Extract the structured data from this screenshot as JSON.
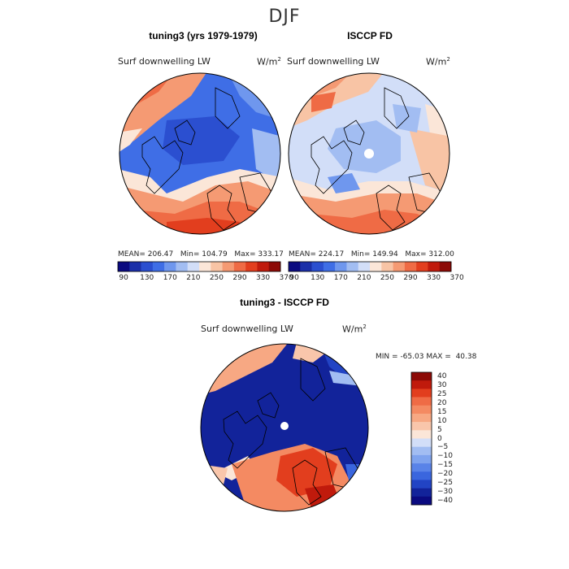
{
  "title": "DJF",
  "panels": {
    "model": {
      "title": "tuning3 (yrs 1979-1979)",
      "field_label": "Surf downwelling LW",
      "units_base": "W/m",
      "units_exp": "2",
      "mean_label": "MEAN=",
      "mean": "206.47",
      "min_label": "Min=",
      "min": "104.79",
      "max_label": "Max=",
      "max": "333.17"
    },
    "obs": {
      "title": "ISCCP FD",
      "field_label": "Surf downwelling LW",
      "units_base": "W/m",
      "units_exp": "2",
      "mean_label": "MEAN=",
      "mean": "224.17",
      "min_label": "Min=",
      "min": "149.94",
      "max_label": "Max=",
      "max": "312.00"
    },
    "diff": {
      "title": "tuning3 - ISCCP FD",
      "field_label": "Surf downwelling LW",
      "units_base": "W/m",
      "units_exp": "2",
      "min_label": "MIN =",
      "min": "-65.03",
      "max_label": "MAX =",
      "max": "40.38"
    }
  },
  "colorbar_abs": {
    "ticks": [
      "90",
      "130",
      "170",
      "210",
      "250",
      "290",
      "330",
      "370"
    ],
    "colors": [
      "#0a0a80",
      "#1a2fa8",
      "#2b4fd0",
      "#3f6ee6",
      "#6f97ee",
      "#a2bdf2",
      "#d2def8",
      "#fbe6d8",
      "#f8c4a5",
      "#f59a73",
      "#ef6b45",
      "#e23e1e",
      "#c01a0c",
      "#8c0a06"
    ]
  },
  "colorbar_diff": {
    "ticks": [
      "40",
      "30",
      "25",
      "20",
      "15",
      "10",
      "5",
      "0",
      "−5",
      "−10",
      "−15",
      "−20",
      "−25",
      "−30",
      "−40"
    ],
    "colors": [
      "#8c0a06",
      "#c01a0c",
      "#e23e1e",
      "#ef6b45",
      "#f48a62",
      "#f7a883",
      "#f9c6ab",
      "#fbe6d8",
      "#d2def8",
      "#a2bdf2",
      "#7fa3ee",
      "#5983e8",
      "#3a66de",
      "#2244c4",
      "#12239a",
      "#0a0a80"
    ]
  }
}
